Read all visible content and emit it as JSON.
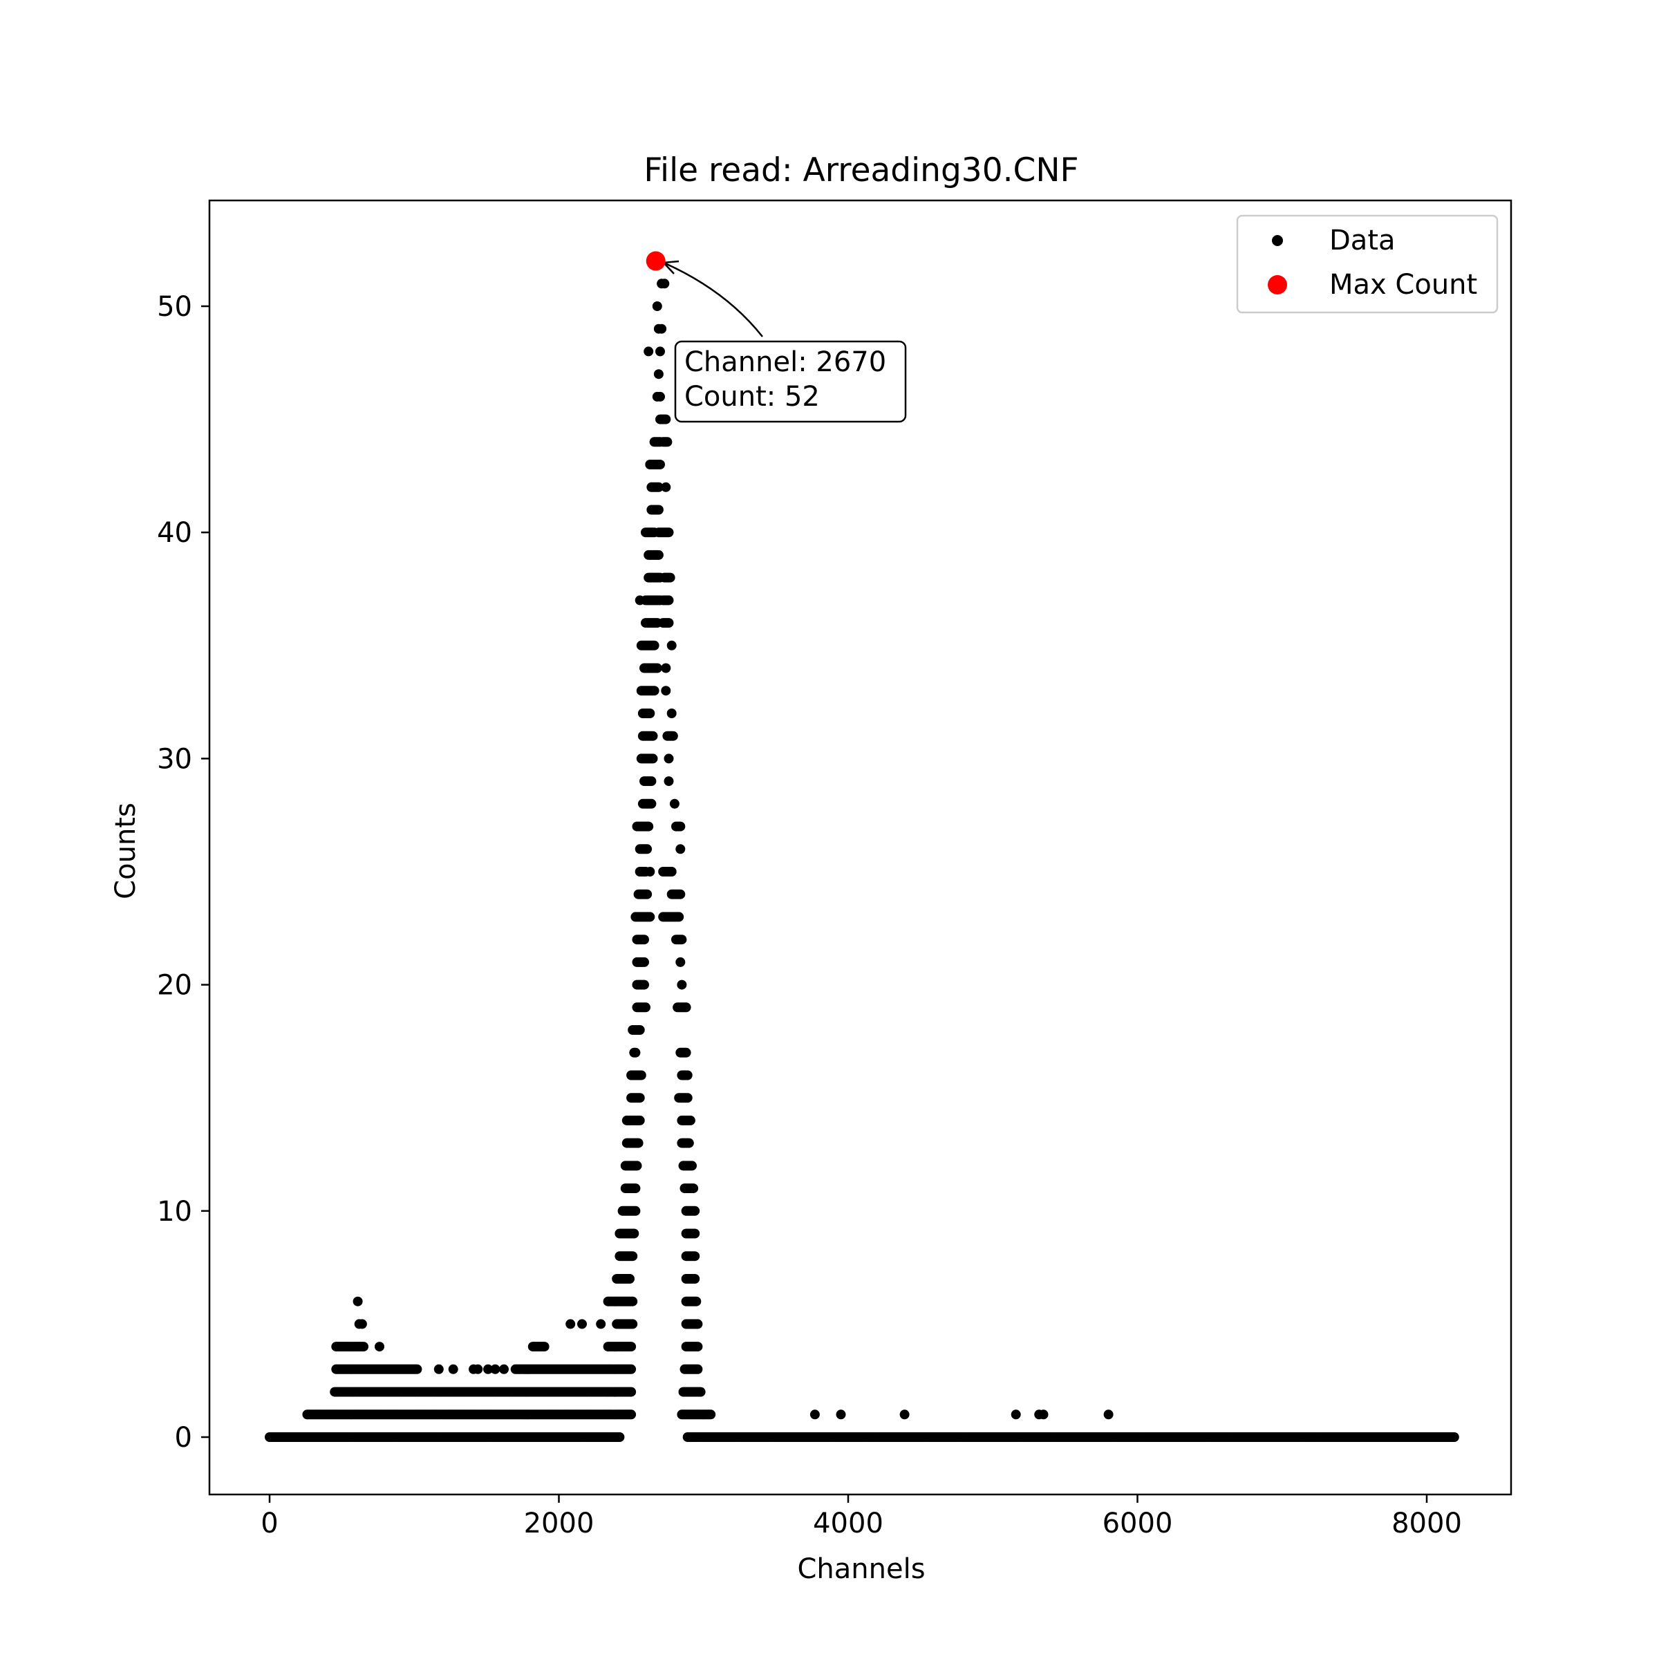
{
  "chart_data": {
    "type": "scatter",
    "title": "File read: Arreading30.CNF",
    "xlabel": "Channels",
    "ylabel": "Counts",
    "xlim": [
      -400,
      8600
    ],
    "ylim": [
      -2.6,
      54.6
    ],
    "xticks": [
      0,
      2000,
      4000,
      6000,
      8000
    ],
    "yticks": [
      0,
      10,
      20,
      30,
      40,
      50
    ],
    "grid": false,
    "legend_position": "top-right",
    "colors": {
      "data": "#000000",
      "max": "#ff0000"
    },
    "legend": [
      {
        "label": "Data",
        "marker": "small-dot",
        "color": "#000000"
      },
      {
        "label": "Max Count",
        "marker": "large-dot",
        "color": "#ff0000"
      }
    ],
    "max_point": {
      "x": 2670,
      "y": 52
    },
    "annotation": {
      "line1": "Channel: 2670",
      "line2": "Count: 52"
    },
    "series": [
      {
        "name": "Data",
        "bands": [
          {
            "y": 0,
            "x": [
              [
                0,
                2420
              ],
              [
                2890,
                8190
              ]
            ]
          },
          {
            "y": 1,
            "x": [
              [
                260,
                2500
              ],
              [
                2850,
                3050
              ]
            ],
            "points": [
              3770,
              3950,
              4390,
              5160,
              5320,
              5350,
              5800
            ]
          },
          {
            "y": 2,
            "x": [
              [
                450,
                2500
              ],
              [
                2860,
                2980
              ]
            ]
          },
          {
            "y": 3,
            "x": [
              [
                460,
                1020
              ],
              [
                1700,
                2500
              ],
              [
                2870,
                2960
              ]
            ],
            "points": [
              1170,
              1270,
              1410,
              1440,
              1510,
              1560,
              1620
            ]
          },
          {
            "y": 4,
            "x": [
              [
                460,
                650
              ],
              [
                1820,
                1900
              ],
              [
                2340,
                2500
              ],
              [
                2880,
                2960
              ]
            ],
            "points": [
              760
            ]
          },
          {
            "y": 5,
            "x": [
              [
                2400,
                2510
              ],
              [
                2880,
                2960
              ]
            ],
            "points": [
              620,
              640,
              2080,
              2160,
              2290
            ]
          },
          {
            "y": 6,
            "x": [
              [
                2340,
                2510
              ],
              [
                2880,
                2950
              ]
            ],
            "points": [
              610
            ]
          },
          {
            "y": 7,
            "x": [
              [
                2400,
                2490
              ],
              [
                2880,
                2940
              ]
            ]
          },
          {
            "y": 8,
            "x": [
              [
                2420,
                2510
              ],
              [
                2880,
                2940
              ]
            ]
          },
          {
            "y": 9,
            "x": [
              [
                2420,
                2520
              ],
              [
                2880,
                2940
              ]
            ]
          },
          {
            "y": 10,
            "x": [
              [
                2440,
                2530
              ],
              [
                2880,
                2940
              ]
            ]
          },
          {
            "y": 11,
            "x": [
              [
                2460,
                2530
              ],
              [
                2870,
                2930
              ]
            ]
          },
          {
            "y": 12,
            "x": [
              [
                2460,
                2540
              ],
              [
                2860,
                2920
              ]
            ]
          },
          {
            "y": 13,
            "x": [
              [
                2470,
                2550
              ],
              [
                2850,
                2900
              ]
            ]
          },
          {
            "y": 14,
            "x": [
              [
                2470,
                2560
              ],
              [
                2850,
                2910
              ]
            ]
          },
          {
            "y": 15,
            "x": [
              [
                2500,
                2560
              ],
              [
                2830,
                2890
              ]
            ]
          },
          {
            "y": 16,
            "x": [
              [
                2500,
                2570
              ],
              [
                2850,
                2890
              ]
            ]
          },
          {
            "y": 17,
            "x": [
              [
                2840,
                2880
              ]
            ],
            "points": [
              2520,
              2530
            ]
          },
          {
            "y": 18,
            "x": [
              [
                2510,
                2560
              ]
            ]
          },
          {
            "y": 19,
            "x": [
              [
                2540,
                2600
              ],
              [
                2820,
                2880
              ]
            ]
          },
          {
            "y": 20,
            "x": [
              [
                2540,
                2590
              ]
            ],
            "points": [
              2850
            ]
          },
          {
            "y": 21,
            "x": [
              [
                2540,
                2590
              ]
            ],
            "points": [
              2840
            ]
          },
          {
            "y": 22,
            "x": [
              [
                2540,
                2590
              ],
              [
                2810,
                2850
              ]
            ]
          },
          {
            "y": 23,
            "x": [
              [
                2530,
                2630
              ],
              [
                2720,
                2830
              ]
            ]
          },
          {
            "y": 24,
            "x": [
              [
                2550,
                2610
              ],
              [
                2780,
                2840
              ]
            ]
          },
          {
            "y": 25,
            "x": [
              [
                2560,
                2600
              ],
              [
                2720,
                2780
              ]
            ],
            "points": [
              2630
            ]
          },
          {
            "y": 26,
            "x": [
              [
                2560,
                2610
              ]
            ],
            "points": [
              2840
            ]
          },
          {
            "y": 27,
            "x": [
              [
                2540,
                2620
              ],
              [
                2810,
                2840
              ]
            ]
          },
          {
            "y": 28,
            "x": [
              [
                2580,
                2640
              ]
            ],
            "points": [
              2800
            ]
          },
          {
            "y": 29,
            "x": [
              [
                2590,
                2640
              ]
            ],
            "points": [
              2760
            ]
          },
          {
            "y": 30,
            "x": [
              [
                2570,
                2650
              ]
            ],
            "points": [
              2760
            ]
          },
          {
            "y": 31,
            "x": [
              [
                2580,
                2650
              ],
              [
                2750,
                2790
              ]
            ]
          },
          {
            "y": 32,
            "x": [
              [
                2580,
                2630
              ]
            ],
            "points": [
              2780
            ]
          },
          {
            "y": 33,
            "x": [
              [
                2570,
                2660
              ]
            ],
            "points": [
              2740
            ]
          },
          {
            "y": 34,
            "x": [
              [
                2590,
                2680
              ]
            ],
            "points": [
              2740
            ]
          },
          {
            "y": 35,
            "x": [
              [
                2570,
                2660
              ]
            ],
            "points": [
              2780
            ]
          },
          {
            "y": 36,
            "x": [
              [
                2600,
                2680
              ],
              [
                2720,
                2760
              ]
            ]
          },
          {
            "y": 37,
            "x": [
              [
                2600,
                2700
              ],
              [
                2720,
                2760
              ]
            ],
            "points": [
              2560
            ]
          },
          {
            "y": 38,
            "x": [
              [
                2620,
                2700
              ],
              [
                2730,
                2770
              ]
            ]
          },
          {
            "y": 39,
            "x": [
              [
                2620,
                2690
              ]
            ]
          },
          {
            "y": 40,
            "x": [
              [
                2600,
                2660
              ],
              [
                2690,
                2760
              ]
            ]
          },
          {
            "y": 41,
            "x": [
              [
                2640,
                2690
              ]
            ]
          },
          {
            "y": 42,
            "x": [
              [
                2640,
                2690
              ]
            ],
            "points": [
              2740
            ]
          },
          {
            "y": 43,
            "x": [
              [
                2630,
                2700
              ]
            ]
          },
          {
            "y": 44,
            "x": [
              [
                2660,
                2700
              ],
              [
                2720,
                2750
              ]
            ]
          },
          {
            "y": 45,
            "x": [
              [
                2700,
                2740
              ]
            ]
          },
          {
            "y": 46,
            "points": [
              2680,
              2700
            ]
          },
          {
            "y": 47,
            "points": [
              2690
            ]
          },
          {
            "y": 48,
            "points": [
              2620,
              2700
            ]
          },
          {
            "y": 49,
            "points": [
              2690,
              2710
            ]
          },
          {
            "y": 50,
            "points": [
              2680
            ]
          },
          {
            "y": 51,
            "points": [
              2710,
              2730
            ]
          },
          {
            "y": 52,
            "points": [
              2670
            ]
          }
        ]
      }
    ]
  }
}
